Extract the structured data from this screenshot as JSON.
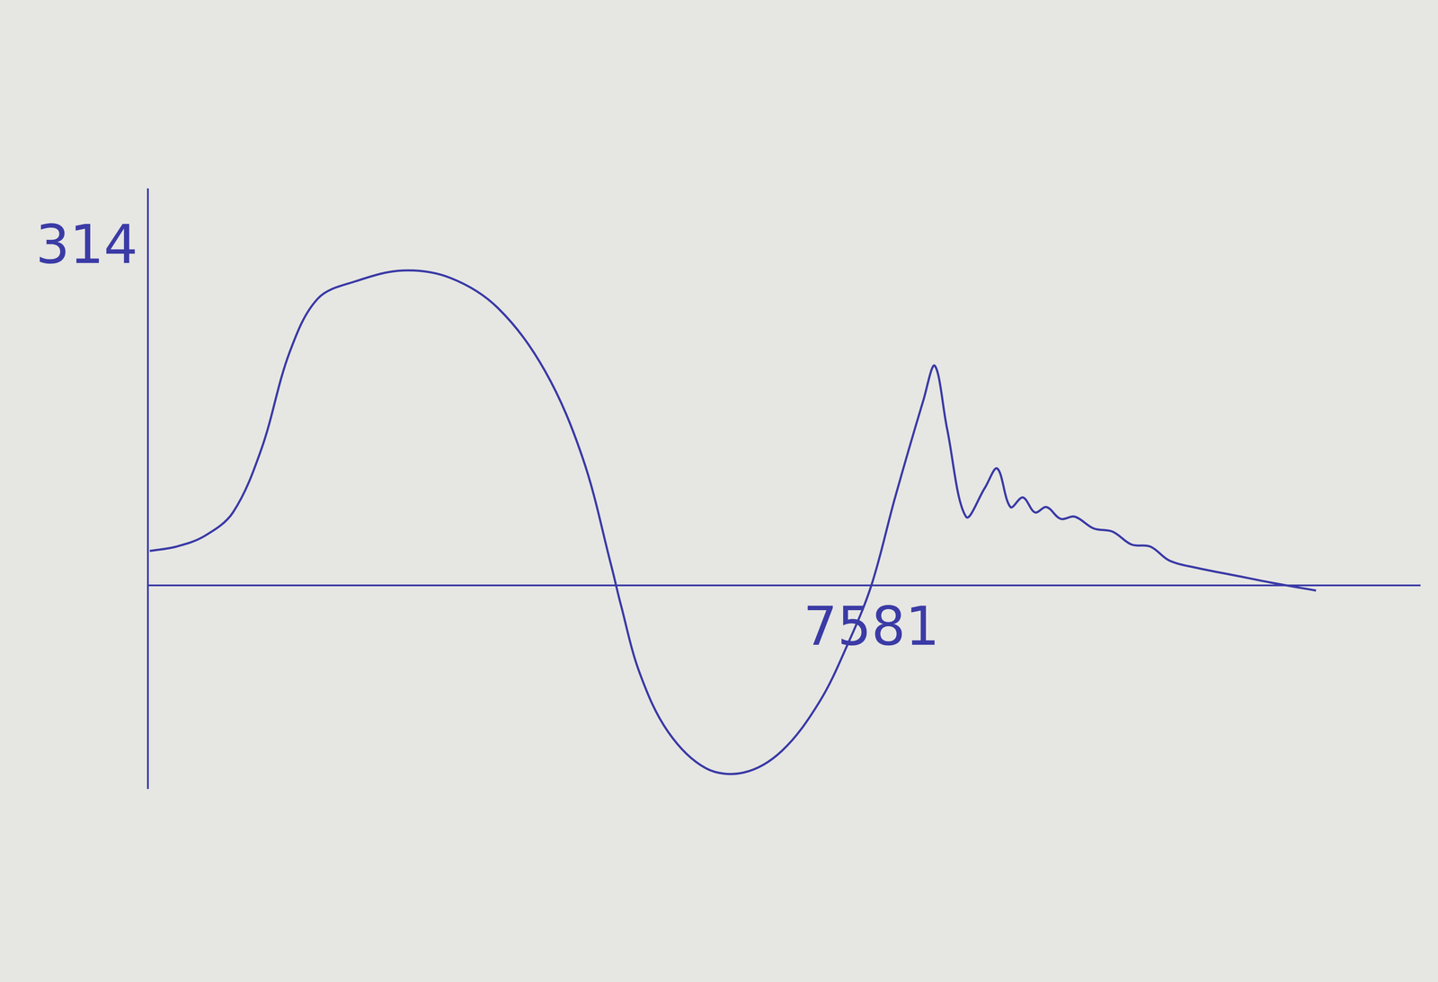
{
  "chart_data": {
    "type": "line",
    "x": [
      20,
      297,
      595,
      892,
      1189,
      1487,
      1784,
      2180,
      2676,
      3171,
      3667,
      4162,
      4559,
      4856,
      4955,
      5153,
      5451,
      5847,
      6243,
      6640,
      7036,
      7333,
      7581,
      7829,
      8126,
      8245,
      8374,
      8572,
      8770,
      8899,
      9038,
      9167,
      9295,
      9415,
      9563,
      9712,
      9910,
      10108,
      10306,
      10505,
      10703,
      11000,
      11397,
      11793,
      12239
    ],
    "values": [
      32,
      36,
      46,
      68,
      127,
      218,
      268,
      284,
      294,
      287,
      259,
      200,
      118,
      18,
      -18,
      -82,
      -137,
      -171,
      -175,
      -155,
      -109,
      -55,
      0,
      82,
      173,
      205,
      146,
      64,
      91,
      109,
      73,
      82,
      68,
      73,
      62,
      64,
      53,
      50,
      38,
      36,
      23,
      16,
      9,
      2,
      -5
    ],
    "color": "#3b3ba6",
    "xlim": [
      0,
      13330
    ],
    "xticks": [
      7581
    ],
    "ylim": [
      -190,
      370
    ],
    "yticks": [
      314
    ],
    "grid": false
  }
}
